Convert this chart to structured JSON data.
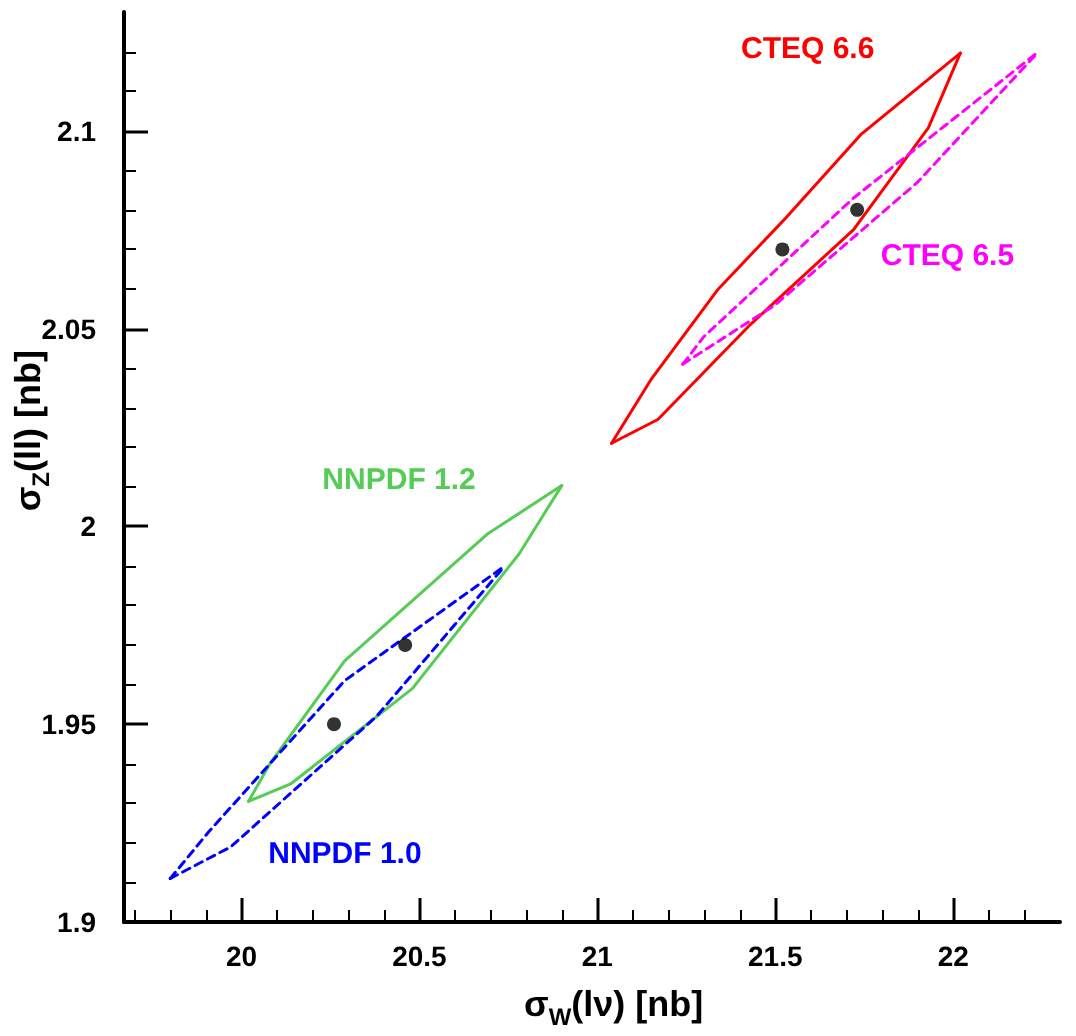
{
  "chart_data": {
    "type": "line",
    "xlabel": "σ$_{W}$(lν) [nb]",
    "ylabel": "σ$_{Z}$(ll) [nb]",
    "xlim": [
      19.67,
      22.3
    ],
    "xticks": [
      20,
      20.5,
      21,
      21.5,
      22
    ],
    "ylim": [
      1.9,
      2.13
    ],
    "yticks": [
      1.9,
      1.95,
      2,
      2.05,
      2.1
    ],
    "grid": false,
    "legend": false,
    "series": [
      {
        "name": "CTEQ 6.6",
        "color": "#ff0000",
        "line_style": "solid",
        "marker": "none",
        "x": [
          21.04,
          21.15,
          21.34,
          21.53,
          21.74,
          22.02
        ],
        "values": [
          2.021,
          2.037,
          2.06,
          2.078,
          2.099,
          2.1196
        ]
      },
      {
        "color": "#ff0000",
        "line_style": "solid",
        "marker": "none",
        "x": [
          21.04,
          21.17,
          21.43,
          21.72,
          21.93,
          22.02
        ],
        "values": [
          2.021,
          2.027,
          2.051,
          2.075,
          2.1007,
          2.1196
        ]
      },
      {
        "name": "CTEQ 6.5",
        "color": "#ff00ff",
        "line_style": "dashed",
        "marker": "none",
        "x": [
          21.24,
          21.3,
          21.72,
          22.24
        ],
        "values": [
          2.041,
          2.048,
          2.083,
          2.12
        ]
      },
      {
        "color": "#ff00ff",
        "line_style": "dashed",
        "marker": "none",
        "x": [
          21.24,
          21.5,
          21.9,
          22.24
        ],
        "values": [
          2.041,
          2.056,
          2.087,
          2.12
        ]
      },
      {
        "name": "NNPDF 1.2",
        "color": "#55cc55",
        "line_style": "solid",
        "marker": "none",
        "x": [
          20.02,
          20.08,
          20.29,
          20.69,
          20.9
        ],
        "values": [
          1.9305,
          1.94,
          1.966,
          1.998,
          2.0103
        ]
      },
      {
        "color": "#55cc55",
        "line_style": "solid",
        "marker": "none",
        "x": [
          20.02,
          20.14,
          20.48,
          20.78,
          20.9
        ],
        "values": [
          1.9305,
          1.935,
          1.959,
          1.993,
          2.0103
        ]
      },
      {
        "name": "NNPDF 1.0",
        "color": "#0000ff",
        "line_style": "dashed",
        "marker": "none",
        "x": [
          19.8,
          19.91,
          20.29,
          20.74
        ],
        "values": [
          1.911,
          1.923,
          1.961,
          1.99
        ]
      },
      {
        "color": "#0000ff",
        "line_style": "dashed",
        "marker": "none",
        "x": [
          19.8,
          19.97,
          20.38,
          20.74
        ],
        "values": [
          1.911,
          1.919,
          1.952,
          1.99
        ]
      },
      {
        "type": "scatter",
        "color": "#000000",
        "marker": "circle",
        "x": [
          20.26,
          20.46,
          21.52,
          21.73
        ],
        "values": [
          1.95,
          1.97,
          2.07,
          2.08
        ]
      }
    ]
  }
}
